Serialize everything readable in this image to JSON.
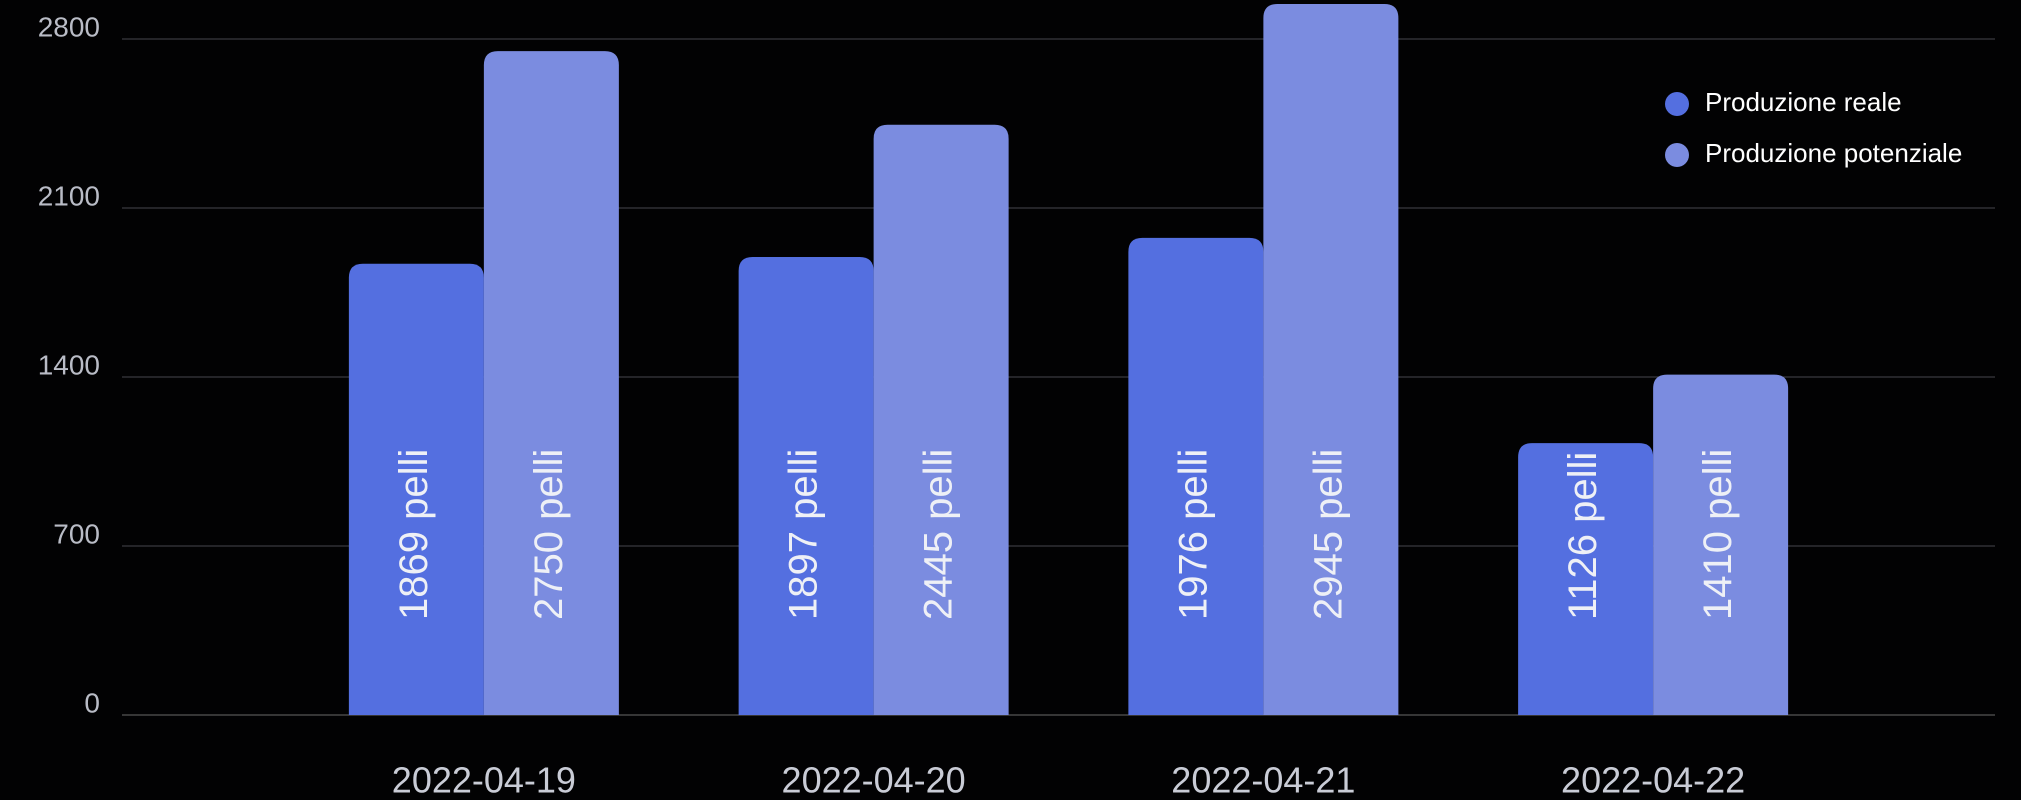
{
  "chart_data": {
    "type": "bar",
    "categories": [
      "2022-04-19",
      "2022-04-20",
      "2022-04-21",
      "2022-04-22"
    ],
    "series": [
      {
        "name": "Produzione reale",
        "color": "#546fe0",
        "values": [
          1869,
          1897,
          1976,
          1126
        ],
        "value_labels": [
          "1869 pelli",
          "1897 pelli",
          "1976 pelli",
          "1126 pelli"
        ]
      },
      {
        "name": "Produzione potenziale",
        "color": "#7b8ce0",
        "values": [
          2750,
          2445,
          2945,
          1410
        ],
        "value_labels": [
          "2750 pelli",
          "2445 pelli",
          "2945 pelli",
          "1410 pelli"
        ]
      }
    ],
    "ylim": [
      0,
      2800
    ],
    "yticks": [
      0,
      700,
      1400,
      2100,
      2800
    ],
    "grid": true,
    "legend": "top-right"
  }
}
